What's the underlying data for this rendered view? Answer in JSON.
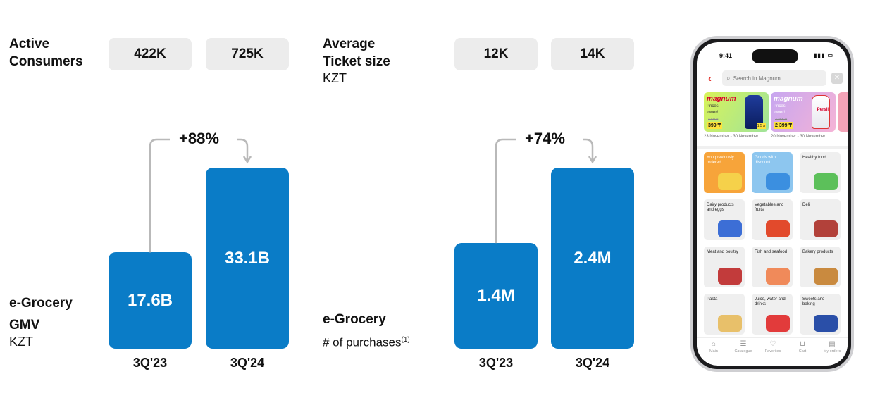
{
  "left_panel": {
    "title_line1": "Active",
    "title_line2": "Consumers",
    "pills": [
      "422K",
      "725K"
    ],
    "chart_label_line1": "e-Grocery",
    "chart_label_line2": "GMV",
    "chart_unit": "KZT",
    "growth": "+88%"
  },
  "right_panel": {
    "title_line1": "Average",
    "title_line2": "Ticket size",
    "unit": "KZT",
    "pills": [
      "12K",
      "14K"
    ],
    "chart_label_line1": "e-Grocery",
    "chart_label_line2": "# of purchases",
    "footnote": "(1)",
    "growth": "+74%"
  },
  "chart_data": [
    {
      "type": "bar",
      "title": "e-Grocery GMV",
      "ylabel": "KZT",
      "categories": [
        "3Q'23",
        "3Q'24"
      ],
      "values": [
        17.6,
        33.1
      ],
      "value_labels": [
        "17.6B",
        "33.1B"
      ],
      "unit": "B",
      "growth_label": "+88%",
      "colors": [
        "#0a7cc7",
        "#0a7cc7"
      ]
    },
    {
      "type": "bar",
      "title": "e-Grocery # of purchases",
      "categories": [
        "3Q'23",
        "3Q'24"
      ],
      "values": [
        1.4,
        2.4
      ],
      "value_labels": [
        "1.4M",
        "2.4M"
      ],
      "unit": "M",
      "growth_label": "+74%",
      "colors": [
        "#0a7cc7",
        "#0a7cc7"
      ]
    }
  ],
  "phone": {
    "time": "9:41",
    "search_placeholder": "Search in Magnum",
    "promos": [
      {
        "brand": "magnum",
        "text_line1": "Prices",
        "text_line2": "lower!",
        "old_price": "4 69 ₸",
        "price": "399 ₸",
        "tag": "1,5 л",
        "date": "23 November - 30 November"
      },
      {
        "brand": "magnum",
        "text_line1": "Prices",
        "text_line2": "lower!",
        "old_price": "3 455 ₸",
        "price": "2 399 ₸",
        "tag": "Persil",
        "date": "20 November - 30 November"
      }
    ],
    "categories": [
      {
        "label": "You previously ordered",
        "icon": "bag-icon"
      },
      {
        "label": "Goods with discount",
        "icon": "percent-icon"
      },
      {
        "label": "Healthy food",
        "icon": "basket-icon"
      },
      {
        "label": "Dairy products and eggs",
        "icon": "milk-icon"
      },
      {
        "label": "Vegetables and fruits",
        "icon": "vegetables-icon"
      },
      {
        "label": "Deli",
        "icon": "sausage-icon"
      },
      {
        "label": "Meat and poultry",
        "icon": "meat-icon"
      },
      {
        "label": "Fish and seafood",
        "icon": "fish-icon"
      },
      {
        "label": "Bakery products",
        "icon": "bread-icon"
      },
      {
        "label": "Pasta",
        "icon": "pasta-icon"
      },
      {
        "label": "Juice, water and drinks",
        "icon": "drinks-icon"
      },
      {
        "label": "Sweets and baking",
        "icon": "sweets-icon"
      }
    ],
    "tabs": [
      {
        "label": "Main",
        "icon": "home-icon"
      },
      {
        "label": "Catalogue",
        "icon": "catalogue-icon"
      },
      {
        "label": "Favorites",
        "icon": "heart-icon"
      },
      {
        "label": "Cart",
        "icon": "cart-icon"
      },
      {
        "label": "My orders",
        "icon": "orders-icon"
      }
    ]
  }
}
